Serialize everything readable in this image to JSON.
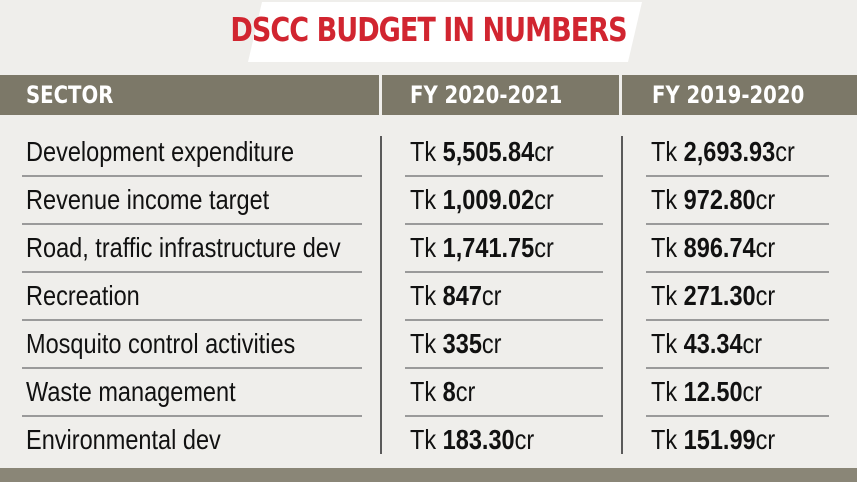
{
  "chart_data": {
    "type": "table",
    "title": "DSCC BUDGET IN NUMBERS",
    "columns": [
      "SECTOR",
      "FY 2020-2021",
      "FY 2019-2020"
    ],
    "currency_prefix": "Tk",
    "unit_suffix": "cr",
    "rows": [
      {
        "sector": "Development expenditure",
        "fy2021": "5,505.84",
        "fy2020": "2,693.93"
      },
      {
        "sector": "Revenue income target",
        "fy2021": "1,009.02",
        "fy2020": "972.80"
      },
      {
        "sector": "Road, traffic infrastructure dev",
        "fy2021": "1,741.75",
        "fy2020": "896.74"
      },
      {
        "sector": "Recreation",
        "fy2021": "847",
        "fy2020": "271.30"
      },
      {
        "sector": "Mosquito control activities",
        "fy2021": "335",
        "fy2020": "43.34"
      },
      {
        "sector": "Waste management",
        "fy2021": "8",
        "fy2020": "12.50"
      },
      {
        "sector": "Environmental dev",
        "fy2021": "183.30",
        "fy2020": "151.99"
      }
    ]
  },
  "colors": {
    "background": "#efeeeb",
    "title": "#d12530",
    "header_bg": "#7c7868",
    "header_text": "#ffffff",
    "title_banner": "#ffffff"
  }
}
